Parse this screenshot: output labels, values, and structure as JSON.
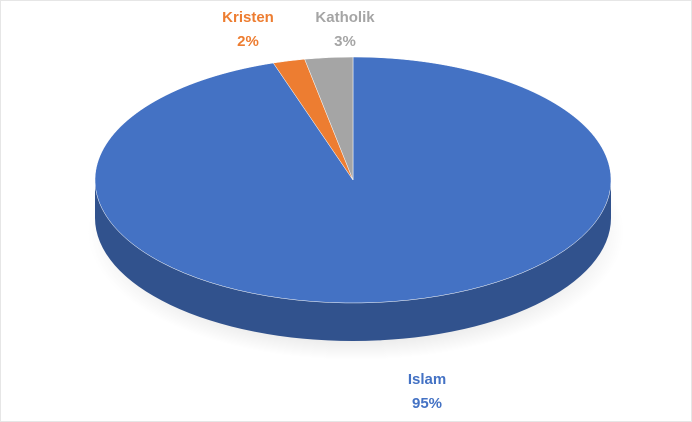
{
  "chart_data": {
    "type": "pie",
    "categories": [
      "Islam",
      "Kristen",
      "Katholik"
    ],
    "values": [
      95,
      2,
      3
    ],
    "value_labels": [
      "95%",
      "2%",
      "3%"
    ],
    "colors": [
      "#4472c4",
      "#ed7d31",
      "#a5a5a5"
    ]
  }
}
